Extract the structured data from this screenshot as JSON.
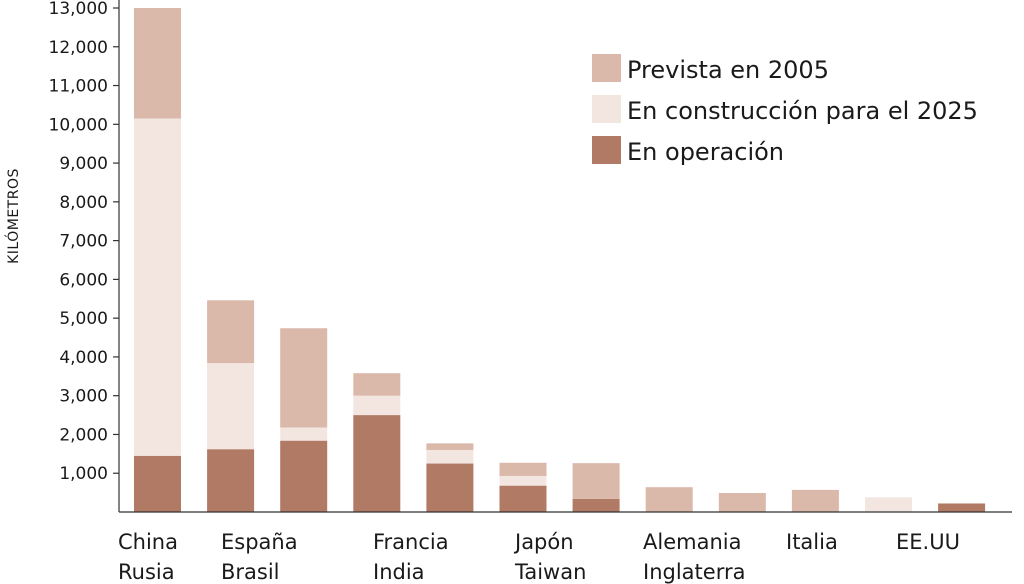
{
  "chart_data": {
    "type": "bar",
    "stacked": true,
    "title": "",
    "xlabel": "",
    "ylabel": "KILÓMETROS",
    "ylim": [
      0,
      13000
    ],
    "yticks": [
      "1,000",
      "2,000",
      "3,000",
      "4,000",
      "5,000",
      "6,000",
      "7,000",
      "8,000",
      "9,000",
      "10,000",
      "11,000",
      "12,000",
      "13,000"
    ],
    "grid": false,
    "legend_position": "top-right",
    "categories": [
      "China",
      "Rusia",
      "España",
      "Brasil",
      "Francia",
      "India",
      "Japón",
      "Taiwan",
      "Alemania",
      "Inglaterra",
      "Italia",
      "EE.UU"
    ],
    "category_label_groups": [
      [
        "China",
        "Rusia"
      ],
      [
        "España",
        "Brasil"
      ],
      [
        "Francia",
        "India"
      ],
      [
        "Japón",
        "Taiwan"
      ],
      [
        "Alemania",
        "Inglaterra"
      ],
      [
        "Italia"
      ],
      [
        "EE.UU"
      ]
    ],
    "series": [
      {
        "name": "En operación",
        "color": "#b07a64",
        "values": [
          1450,
          1620,
          1840,
          2500,
          1250,
          680,
          340,
          0,
          0,
          0,
          0,
          220
        ]
      },
      {
        "name": "En construcción para el 2025",
        "color": "#f3e6e1",
        "values": [
          8700,
          2220,
          340,
          500,
          350,
          250,
          0,
          0,
          0,
          0,
          380,
          0
        ]
      },
      {
        "name": "Prevista en 2005",
        "color": "#dab8aa",
        "values": [
          2850,
          1620,
          2560,
          580,
          170,
          340,
          920,
          640,
          490,
          570,
          0,
          0
        ]
      }
    ],
    "legend_order": [
      "Prevista en 2005",
      "En construcción para el 2025",
      "En operación"
    ]
  }
}
